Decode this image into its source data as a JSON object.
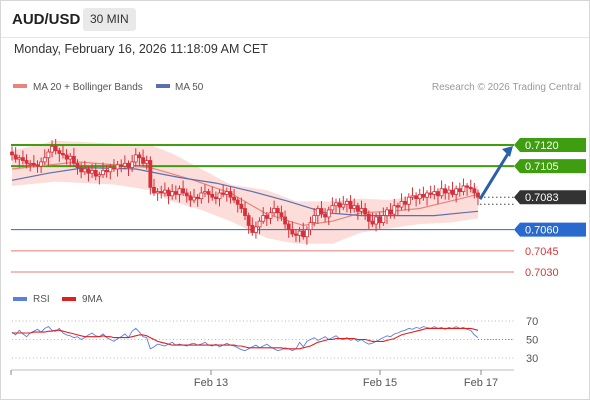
{
  "header": {
    "symbol": "AUD/USD",
    "timeframe": "30 MIN",
    "datetime": "Monday, February 16, 2026 11:18:09 AM CET"
  },
  "legend": {
    "ma20_label": "MA 20 + Bollinger Bands",
    "ma50_label": "MA 50",
    "credit": "Research © 2026 Trading Central",
    "rsi_label": "RSI",
    "nine_ma_label": "9MA"
  },
  "colors": {
    "candle": "#d6303a",
    "ma20": "#e8837f",
    "band_fill": "#fbd7d4",
    "ma50": "#5a6fb0",
    "green_level": "#3f9e0f",
    "blue_level": "#2a6acf",
    "red_level": "#e07a78",
    "last_price_box": "#333333",
    "arrow": "#2a5faa",
    "rsi": "#5a7fe0",
    "rsi_ma": "#e02020"
  },
  "chart_data": [
    {
      "type": "candlestick",
      "title": "AUD/USD 30 MIN",
      "x_ticks": [
        "Feb 13",
        "Feb 15",
        "Feb 17"
      ],
      "ylim": [
        0.7025,
        0.7135
      ],
      "price_levels": [
        {
          "value": 0.712,
          "label": "0.7120",
          "kind": "resistance"
        },
        {
          "value": 0.7105,
          "label": "0.7105",
          "kind": "resistance"
        },
        {
          "value": 0.7083,
          "label": "0.7083",
          "kind": "last_price"
        },
        {
          "value": 0.706,
          "label": "0.7060",
          "kind": "pivot"
        },
        {
          "value": 0.7045,
          "label": "0.7045",
          "kind": "support"
        },
        {
          "value": 0.703,
          "label": "0.7030",
          "kind": "support"
        }
      ],
      "close_path": [
        0.7113,
        0.711,
        0.7111,
        0.7109,
        0.7107,
        0.7107,
        0.7106,
        0.7105,
        0.7108,
        0.7111,
        0.7115,
        0.7119,
        0.7116,
        0.7114,
        0.7113,
        0.711,
        0.7112,
        0.7107,
        0.7104,
        0.7101,
        0.7103,
        0.71,
        0.7102,
        0.7098,
        0.7099,
        0.7102,
        0.7101,
        0.7104,
        0.7103,
        0.7106,
        0.7105,
        0.7107,
        0.7104,
        0.7108,
        0.7113,
        0.7111,
        0.7107,
        0.7109,
        0.709,
        0.7086,
        0.7087,
        0.7086,
        0.7088,
        0.7084,
        0.7087,
        0.7085,
        0.7089,
        0.7086,
        0.7084,
        0.7081,
        0.7083,
        0.7082,
        0.7086,
        0.7087,
        0.7085,
        0.7083,
        0.7082,
        0.7086,
        0.7085,
        0.7087,
        0.7083,
        0.7081,
        0.7078,
        0.7075,
        0.707,
        0.7063,
        0.7058,
        0.7062,
        0.7066,
        0.707,
        0.7068,
        0.7072,
        0.7075,
        0.7072,
        0.7069,
        0.7064,
        0.706,
        0.7057,
        0.7056,
        0.7059,
        0.7055,
        0.706,
        0.7065,
        0.707,
        0.7075,
        0.7071,
        0.7069,
        0.7074,
        0.7077,
        0.7079,
        0.7076,
        0.7078,
        0.708,
        0.7075,
        0.7077,
        0.7073,
        0.7075,
        0.7071,
        0.7066,
        0.7064,
        0.7069,
        0.7065,
        0.707,
        0.7074,
        0.7071,
        0.7077,
        0.7076,
        0.708,
        0.7078,
        0.7083,
        0.7084,
        0.7082,
        0.7085,
        0.7083,
        0.7086,
        0.7085,
        0.7087,
        0.7084,
        0.7089,
        0.7086,
        0.7088,
        0.7085,
        0.7089,
        0.7087,
        0.7091,
        0.709,
        0.7089,
        0.7086,
        0.7083
      ],
      "ma20": [
        [
          0,
          0.7103
        ],
        [
          18,
          0.7108
        ],
        [
          38,
          0.7104
        ],
        [
          50,
          0.7095
        ],
        [
          60,
          0.7086
        ],
        [
          70,
          0.7071
        ],
        [
          80,
          0.7063
        ],
        [
          88,
          0.7066
        ],
        [
          96,
          0.7072
        ],
        [
          104,
          0.7073
        ],
        [
          112,
          0.7075
        ],
        [
          120,
          0.708
        ],
        [
          128,
          0.7085
        ]
      ],
      "bollinger_upper": [
        [
          0,
          0.7116
        ],
        [
          12,
          0.7123
        ],
        [
          28,
          0.7121
        ],
        [
          38,
          0.712
        ],
        [
          44,
          0.7114
        ],
        [
          52,
          0.7103
        ],
        [
          60,
          0.7092
        ],
        [
          70,
          0.7088
        ],
        [
          78,
          0.708
        ],
        [
          88,
          0.708
        ],
        [
          96,
          0.7082
        ],
        [
          104,
          0.7081
        ],
        [
          112,
          0.7085
        ],
        [
          120,
          0.7087
        ],
        [
          128,
          0.7091
        ]
      ],
      "bollinger_lower": [
        [
          0,
          0.7091
        ],
        [
          12,
          0.7094
        ],
        [
          28,
          0.7092
        ],
        [
          38,
          0.7088
        ],
        [
          44,
          0.708
        ],
        [
          52,
          0.7074
        ],
        [
          60,
          0.7066
        ],
        [
          70,
          0.7054
        ],
        [
          78,
          0.705
        ],
        [
          88,
          0.705
        ],
        [
          96,
          0.7058
        ],
        [
          104,
          0.7061
        ],
        [
          112,
          0.7064
        ],
        [
          120,
          0.7065
        ],
        [
          128,
          0.7068
        ]
      ],
      "ma50": [
        [
          0,
          0.7095
        ],
        [
          10,
          0.71
        ],
        [
          20,
          0.7104
        ],
        [
          34,
          0.7103
        ],
        [
          46,
          0.7097
        ],
        [
          56,
          0.7093
        ],
        [
          66,
          0.7087
        ],
        [
          76,
          0.708
        ],
        [
          86,
          0.7072
        ],
        [
          96,
          0.707
        ],
        [
          106,
          0.707
        ],
        [
          116,
          0.707
        ],
        [
          124,
          0.7072
        ],
        [
          128,
          0.7073
        ]
      ],
      "forecast_arrow": {
        "from": 0.7083,
        "to": 0.712
      }
    },
    {
      "type": "line",
      "title": "RSI",
      "y_ticks": [
        70,
        50,
        30
      ],
      "ylim": [
        20,
        80
      ],
      "series": [
        {
          "name": "RSI",
          "values": [
            58,
            55,
            60,
            56,
            53,
            57,
            59,
            61,
            58,
            62,
            64,
            60,
            59,
            62,
            57,
            55,
            54,
            52,
            53,
            50,
            52,
            55,
            57,
            54,
            53,
            56,
            52,
            50,
            48,
            51,
            53,
            56,
            52,
            59,
            62,
            58,
            53,
            52,
            40,
            42,
            45,
            44,
            43,
            45,
            47,
            44,
            45,
            44,
            43,
            45,
            46,
            44,
            45,
            47,
            44,
            43,
            45,
            42,
            44,
            46,
            44,
            43,
            41,
            39,
            38,
            40,
            42,
            44,
            41,
            43,
            45,
            42,
            40,
            38,
            39,
            41,
            40,
            38,
            40,
            47,
            42,
            48,
            50,
            52,
            49,
            51,
            53,
            50,
            52,
            54,
            51,
            50,
            52,
            49,
            51,
            48,
            50,
            47,
            45,
            46,
            48,
            50,
            52,
            54,
            53,
            56,
            57,
            59,
            60,
            62,
            61,
            63,
            62,
            64,
            63,
            62,
            64,
            62,
            63,
            61,
            63,
            62,
            64,
            62,
            63,
            61,
            60,
            55,
            52
          ]
        },
        {
          "name": "9MA",
          "values": [
            57,
            57,
            57,
            57,
            57,
            57,
            58,
            58,
            58,
            58,
            59,
            59,
            60,
            60,
            59,
            58,
            57,
            56,
            55,
            54,
            53,
            53,
            53,
            53,
            53,
            54,
            53,
            53,
            52,
            52,
            52,
            52,
            52,
            53,
            54,
            55,
            55,
            54,
            52,
            50,
            48,
            47,
            46,
            45,
            44,
            44,
            44,
            44,
            44,
            44,
            44,
            44,
            44,
            44,
            44,
            44,
            44,
            44,
            44,
            44,
            44,
            44,
            43,
            43,
            42,
            41,
            41,
            41,
            41,
            41,
            41,
            41,
            41,
            41,
            41,
            40,
            40,
            40,
            40,
            40,
            41,
            42,
            43,
            45,
            47,
            48,
            49,
            50,
            50,
            51,
            51,
            51,
            51,
            51,
            51,
            50,
            50,
            50,
            49,
            48,
            48,
            48,
            48,
            49,
            50,
            51,
            53,
            55,
            56,
            57,
            58,
            59,
            60,
            61,
            62,
            62,
            62,
            62,
            62,
            62,
            62,
            62,
            62,
            62,
            62,
            62,
            62,
            61,
            60
          ]
        }
      ]
    }
  ]
}
